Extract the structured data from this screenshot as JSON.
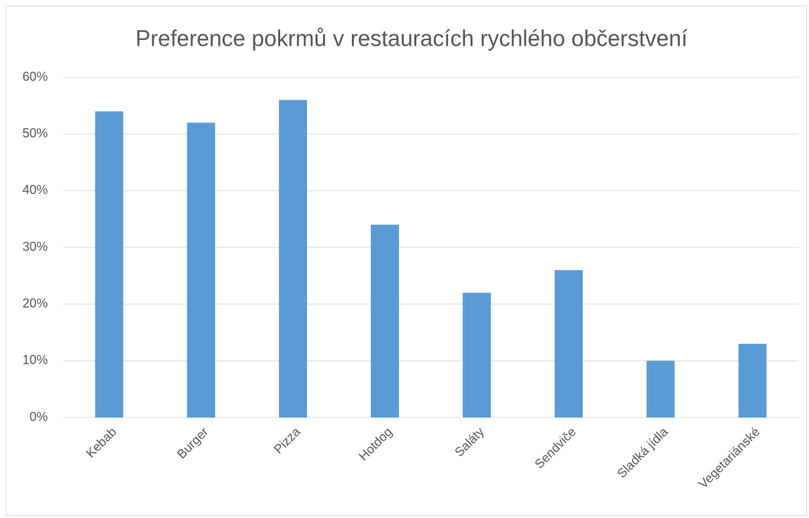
{
  "chart_data": {
    "type": "bar",
    "title": "Preference pokrmů v restauracích rychlého občerstvení",
    "categories": [
      "Kebab",
      "Burger",
      "Pizza",
      "Hotdog",
      "Saláty",
      "Sendviče",
      "Sladká jídla",
      "Vegetariánské"
    ],
    "values": [
      54,
      52,
      56,
      34,
      22,
      26,
      10,
      13
    ],
    "color": "#5b9bd5",
    "ylim": [
      0,
      60
    ],
    "yticks": [
      {
        "value": 0,
        "label": "0%"
      },
      {
        "value": 10,
        "label": "10%"
      },
      {
        "value": 20,
        "label": "20%"
      },
      {
        "value": 30,
        "label": "30%"
      },
      {
        "value": 40,
        "label": "40%"
      },
      {
        "value": 50,
        "label": "50%"
      },
      {
        "value": 60,
        "label": "60%"
      }
    ],
    "grid": true
  }
}
